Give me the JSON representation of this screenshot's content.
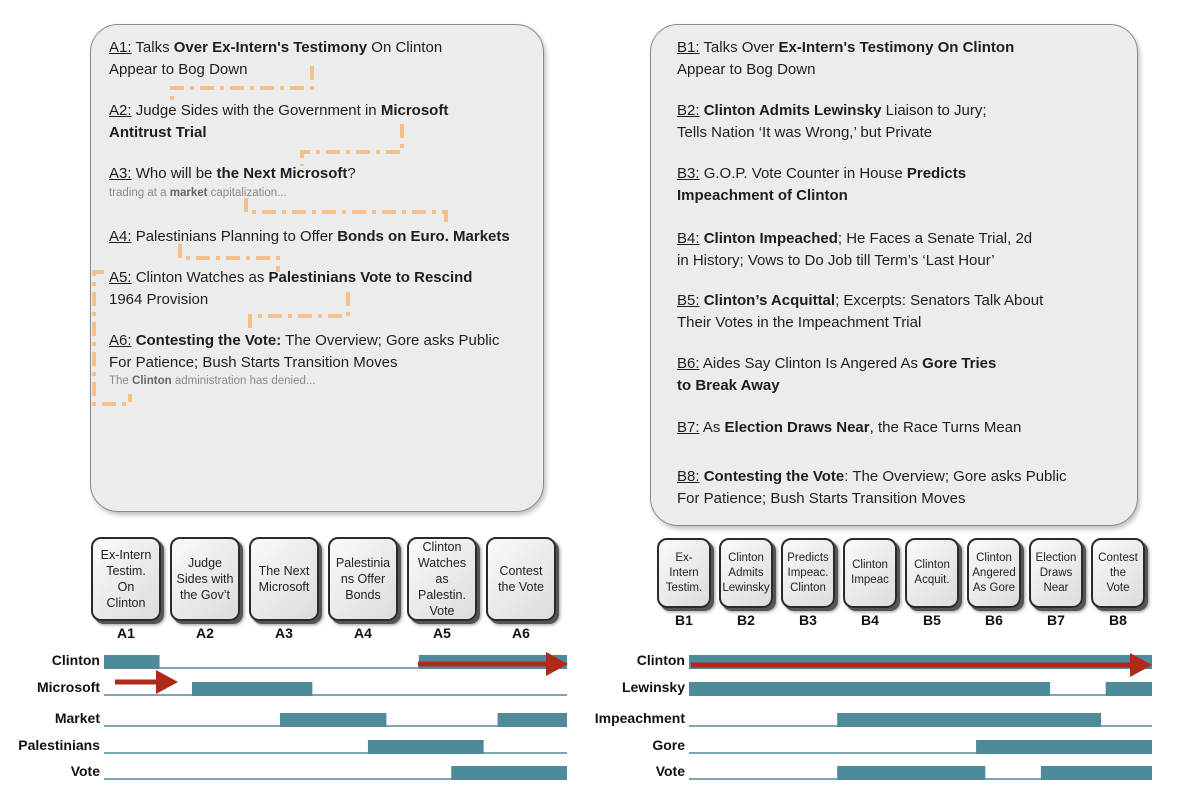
{
  "panel_a": {
    "headlines": [
      {
        "tag": "A1:",
        "parts": [
          [
            "Talks ",
            false
          ],
          [
            "Over Ex-Intern's Testimony",
            true
          ],
          [
            " On Clinton",
            false
          ]
        ],
        "line2": [
          [
            "Appear to Bog Down",
            false
          ]
        ]
      },
      {
        "tag": "A2:",
        "parts": [
          [
            "Judge Sides with the Government in ",
            false
          ],
          [
            "Microsoft",
            true
          ]
        ],
        "line2": [
          [
            "Antitrust Trial",
            true
          ]
        ]
      },
      {
        "tag": "A3:",
        "parts": [
          [
            "Who will be ",
            false
          ],
          [
            "the Next Microsoft",
            true
          ],
          [
            "?",
            false
          ]
        ],
        "snippet": [
          [
            "trading at a ",
            false
          ],
          [
            "market",
            true
          ],
          [
            " capitalization...",
            false
          ]
        ]
      },
      {
        "tag": "A4:",
        "parts": [
          [
            "Palestinians Planning to Offer ",
            false
          ],
          [
            "Bonds on Euro. Markets",
            true
          ]
        ]
      },
      {
        "tag": "A5:",
        "parts": [
          [
            "Clinton Watches as ",
            false
          ],
          [
            "Palestinians Vote to Rescind",
            true
          ]
        ],
        "line2": [
          [
            "1964 Provision",
            false
          ]
        ]
      },
      {
        "tag": "A6:",
        "parts": [
          [
            "Contesting the Vote:",
            true
          ],
          [
            " The Overview; Gore asks Public",
            false
          ]
        ],
        "line2": [
          [
            "For Patience; Bush Starts Transition Moves",
            false
          ]
        ],
        "snippet": [
          [
            "The ",
            false
          ],
          [
            "Clinton",
            true
          ],
          [
            " administration has denied...",
            false
          ]
        ]
      }
    ]
  },
  "panel_b": {
    "headlines": [
      {
        "tag": "B1:",
        "parts": [
          [
            "Talks Over ",
            false
          ],
          [
            "Ex-Intern's Testimony On Clinton",
            true
          ]
        ],
        "line2": [
          [
            "Appear to Bog Down",
            false
          ]
        ]
      },
      {
        "tag": "B2:",
        "parts": [
          [
            "Clinton Admits Lewinsky",
            true
          ],
          [
            " Liaison to Jury;",
            false
          ]
        ],
        "line2": [
          [
            "Tells Nation ‘It was Wrong,’ but Private",
            false
          ]
        ]
      },
      {
        "tag": "B3:",
        "parts": [
          [
            "G.O.P. Vote Counter in House ",
            false
          ],
          [
            "Predicts",
            true
          ]
        ],
        "line2": [
          [
            "Impeachment of Clinton",
            true
          ]
        ]
      },
      {
        "tag": "B4:",
        "parts": [
          [
            "Clinton Impeached",
            true
          ],
          [
            "; He Faces a Senate Trial, 2d",
            false
          ]
        ],
        "line2": [
          [
            "in History; Vows to Do Job till Term’s ‘Last Hour’",
            false
          ]
        ]
      },
      {
        "tag": "B5:",
        "parts": [
          [
            "Clinton’s Acquittal",
            true
          ],
          [
            "; Excerpts: Senators Talk About",
            false
          ]
        ],
        "line2": [
          [
            "Their Votes in the Impeachment Trial",
            false
          ]
        ]
      },
      {
        "tag": "B6:",
        "parts": [
          [
            "Aides Say Clinton Is Angered As ",
            false
          ],
          [
            "Gore Tries",
            true
          ]
        ],
        "line2": [
          [
            "to Break Away",
            true
          ]
        ]
      },
      {
        "tag": "B7:",
        "parts": [
          [
            "As ",
            false
          ],
          [
            "Election Draws Near",
            true
          ],
          [
            ", the Race Turns Mean",
            false
          ]
        ]
      },
      {
        "tag": "B8:",
        "parts": [
          [
            "Contesting the Vote",
            true
          ],
          [
            ": The Overview; Gore asks Public",
            false
          ]
        ],
        "line2": [
          [
            "For Patience; Bush Starts Transition Moves",
            false
          ]
        ]
      }
    ]
  },
  "tiles_a": [
    {
      "id": "A1",
      "label": "Ex-Intern\nTestim.\nOn\nClinton"
    },
    {
      "id": "A2",
      "label": "Judge\nSides with\nthe Gov’t"
    },
    {
      "id": "A3",
      "label": "The Next\nMicrosoft"
    },
    {
      "id": "A4",
      "label": "Palestinia\nns Offer\nBonds"
    },
    {
      "id": "A5",
      "label": "Clinton\nWatches\nas\nPalestin.\nVote"
    },
    {
      "id": "A6",
      "label": "Contest\nthe Vote"
    }
  ],
  "tiles_b": [
    {
      "id": "B1",
      "label": "Ex-\nIntern\nTestim."
    },
    {
      "id": "B2",
      "label": "Clinton\nAdmits\nLewinsky"
    },
    {
      "id": "B3",
      "label": "Predicts\nImpeac.\nClinton"
    },
    {
      "id": "B4",
      "label": "Clinton\nImpeac"
    },
    {
      "id": "B5",
      "label": "Clinton\nAcquit."
    },
    {
      "id": "B6",
      "label": "Clinton\nAngered\nAs Gore"
    },
    {
      "id": "B7",
      "label": "Election\nDraws\nNear"
    },
    {
      "id": "B8",
      "label": "Contest\nthe\nVote"
    }
  ],
  "terms_a": [
    {
      "name": "Clinton",
      "segments": [
        [
          0,
          0.12
        ],
        [
          0.68,
          1.0
        ]
      ]
    },
    {
      "name": "Microsoft",
      "segments": [
        [
          0.19,
          0.45
        ]
      ]
    },
    {
      "name": "Market",
      "segments": [
        [
          0.38,
          0.61
        ],
        [
          0.85,
          1.0
        ]
      ]
    },
    {
      "name": "Palestinians",
      "segments": [
        [
          0.57,
          0.82
        ]
      ]
    },
    {
      "name": "Vote",
      "segments": [
        [
          0.75,
          1.0
        ]
      ]
    }
  ],
  "terms_b": [
    {
      "name": "Clinton",
      "segments": [
        [
          0,
          1.0
        ]
      ]
    },
    {
      "name": "Lewinsky",
      "segments": [
        [
          0,
          0.78
        ],
        [
          0.9,
          1.0
        ]
      ]
    },
    {
      "name": "Impeachment",
      "segments": [
        [
          0.32,
          0.89
        ]
      ]
    },
    {
      "name": "Gore",
      "segments": [
        [
          0.62,
          1.0
        ]
      ]
    },
    {
      "name": "Vote",
      "segments": [
        [
          0.32,
          0.64
        ],
        [
          0.76,
          1.0
        ]
      ]
    }
  ],
  "colors": {
    "segment": "#4e8a9a",
    "baseline": "#4e8a9a",
    "arrow": "#b02a1c",
    "dash": "#f4c08c"
  }
}
